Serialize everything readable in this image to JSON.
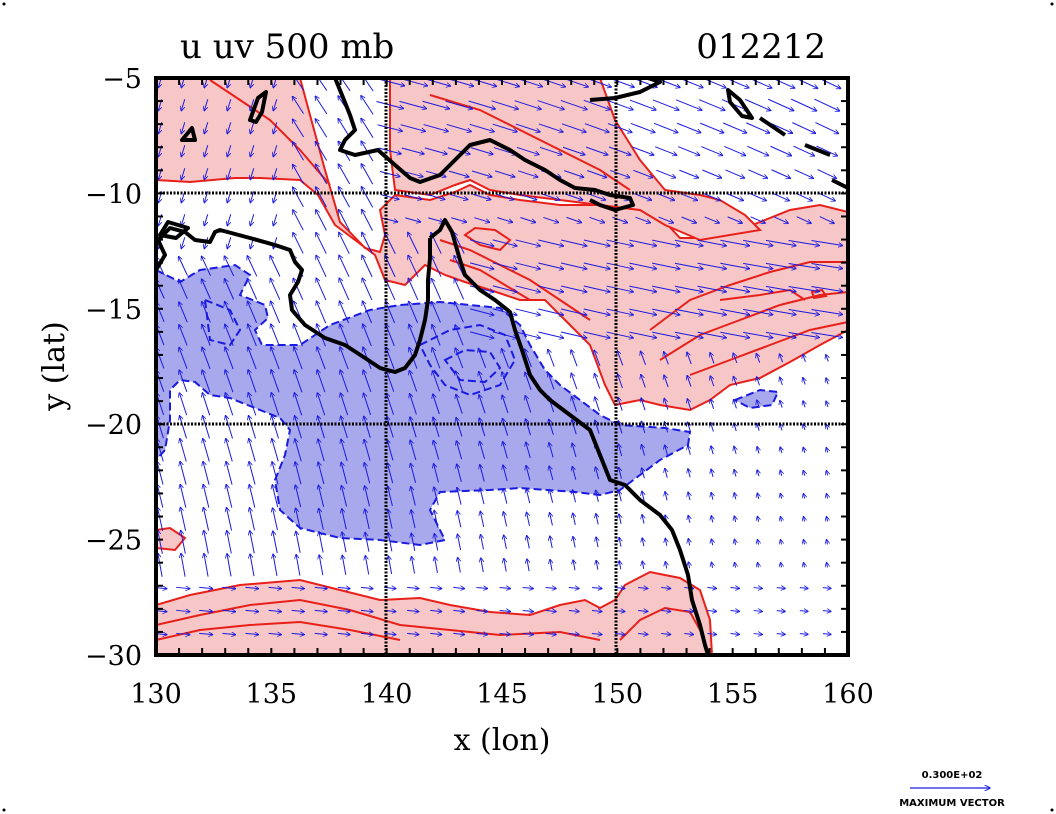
{
  "title": {
    "left": "u  uv 500  mb",
    "right": "012212"
  },
  "axes": {
    "xlabel": "x (lon)",
    "ylabel": "y (lat)",
    "x_ticks": [
      "130",
      "135",
      "140",
      "145",
      "150",
      "155",
      "160"
    ],
    "y_ticks": [
      "−5",
      "−10",
      "−15",
      "−20",
      "−25",
      "−30"
    ],
    "xlim": [
      130,
      160
    ],
    "ylim": [
      -30,
      -5
    ],
    "grid_lines_x": [
      140,
      150
    ],
    "grid_lines_y": [
      -10,
      -20
    ]
  },
  "vector_key": {
    "magnitude_label": "0.300E+02",
    "caption": "MAXIMUM VECTOR"
  },
  "colors": {
    "positive_fill": "#f7c6c6",
    "positive_contour": "#e8201a",
    "negative_fill": "#a8a8ec",
    "negative_contour": "#1a1ae0",
    "vector": "#1a1ae0",
    "coastline": "#000000"
  }
}
